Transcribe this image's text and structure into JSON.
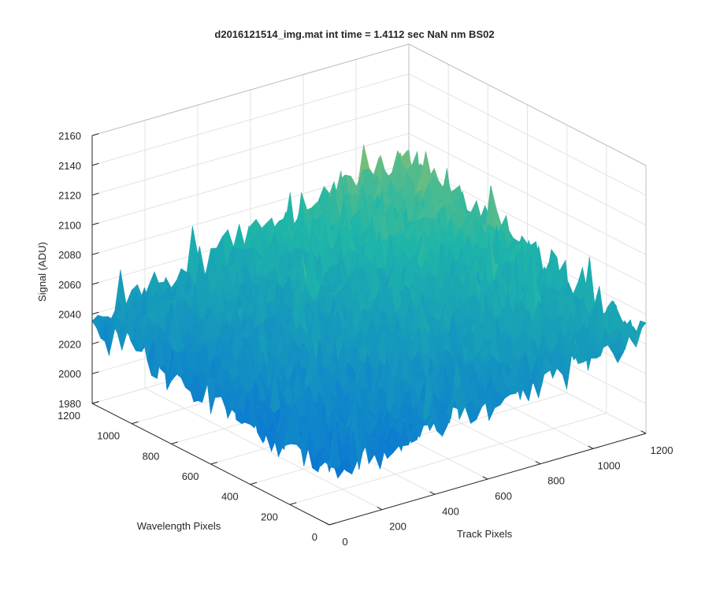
{
  "chart_data": {
    "type": "surface",
    "title": "d2016121514_img.mat int time = 1.4112 sec  NaN nm BS02",
    "xlabel": "Track Pixels",
    "ylabel": "Wavelength Pixels",
    "zlabel": "Signal (ADU)",
    "xlim": [
      0,
      1200
    ],
    "ylim": [
      0,
      1200
    ],
    "zlim": [
      1980,
      2160
    ],
    "x_ticks": [
      "0",
      "200",
      "400",
      "600",
      "800",
      "1000",
      "1200"
    ],
    "y_ticks": [
      "0",
      "200",
      "400",
      "600",
      "800",
      "1000",
      "1200"
    ],
    "z_ticks": [
      "1980",
      "2000",
      "2020",
      "2040",
      "2060",
      "2080",
      "2100",
      "2120",
      "2140",
      "2160"
    ],
    "grid": true,
    "colormap": "parula",
    "surface_stats": {
      "min_signal": 1985,
      "max_signal": 2150,
      "typical_min": 2010,
      "typical_max": 2120,
      "corner_signal": {
        "x0_y0": 2015,
        "x1200_y0": 2045,
        "x0_y1200": 2035,
        "x1200_y1200": 2085
      }
    },
    "colors": {
      "low": "#0a72d8",
      "mid": "#1fb6a8",
      "high": "#f0c93a",
      "axes": "#262626",
      "grid": "#e3e3e3"
    }
  }
}
